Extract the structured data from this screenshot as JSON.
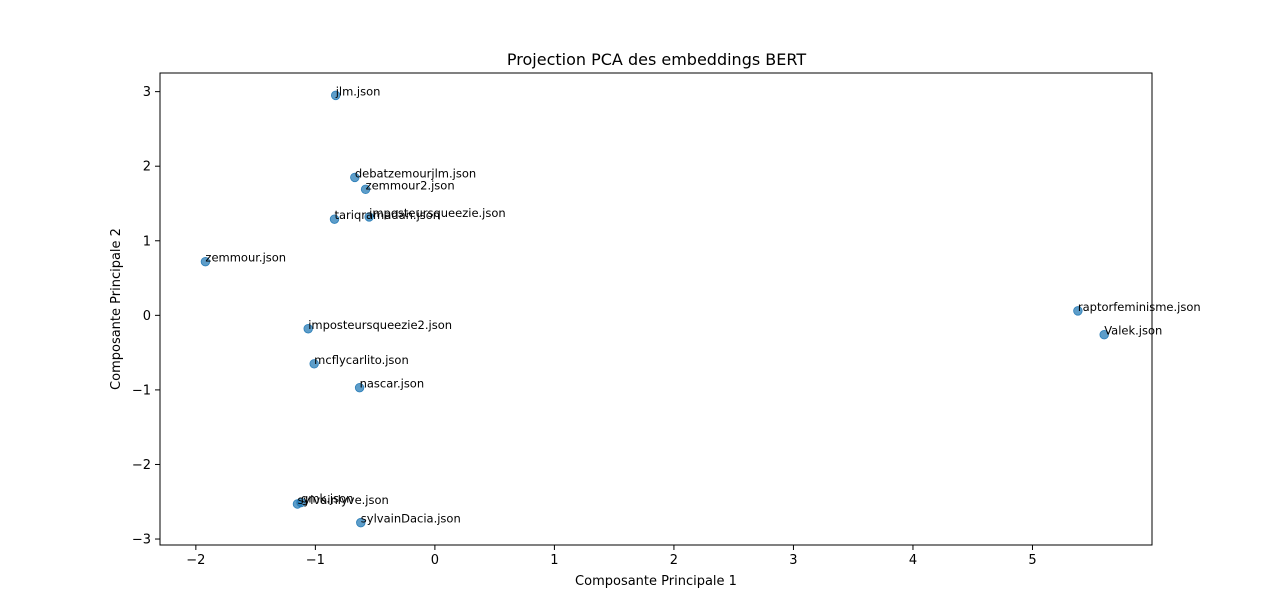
{
  "chart_data": {
    "type": "scatter",
    "title": "Projection PCA des embeddings BERT",
    "xlabel": "Composante Principale 1",
    "ylabel": "Composante Principale 2",
    "xlim": [
      -2.3,
      6.0
    ],
    "ylim": [
      -3.08,
      3.25
    ],
    "xticks": [
      -2,
      -1,
      0,
      1,
      2,
      3,
      4,
      5
    ],
    "yticks": [
      -3,
      -2,
      -1,
      0,
      1,
      2,
      3
    ],
    "grid": false,
    "marker_color": "#1f77b4",
    "points": [
      {
        "label": "jlm.json",
        "x": -0.83,
        "y": 2.95
      },
      {
        "label": "debatzemourjlm.json",
        "x": -0.67,
        "y": 1.85
      },
      {
        "label": "zemmour2.json",
        "x": -0.58,
        "y": 1.69
      },
      {
        "label": "imposteursqueezie.json",
        "x": -0.55,
        "y": 1.32
      },
      {
        "label": "tariqramadan.json",
        "x": -0.84,
        "y": 1.29
      },
      {
        "label": "zemmour.json",
        "x": -1.92,
        "y": 0.72
      },
      {
        "label": "raptorfeminisme.json",
        "x": 5.38,
        "y": 0.06
      },
      {
        "label": "Valek.json",
        "x": 5.6,
        "y": -0.26
      },
      {
        "label": "imposteursqueezie2.json",
        "x": -1.06,
        "y": -0.18
      },
      {
        "label": "mcflycarlito.json",
        "x": -1.01,
        "y": -0.65
      },
      {
        "label": "nascar.json",
        "x": -0.63,
        "y": -0.97
      },
      {
        "label": "gmk.json",
        "x": -1.12,
        "y": -2.51
      },
      {
        "label": "sylvainlyve.json",
        "x": -1.15,
        "y": -2.53
      },
      {
        "label": "sylvainDacia.json",
        "x": -0.62,
        "y": -2.78
      }
    ]
  }
}
